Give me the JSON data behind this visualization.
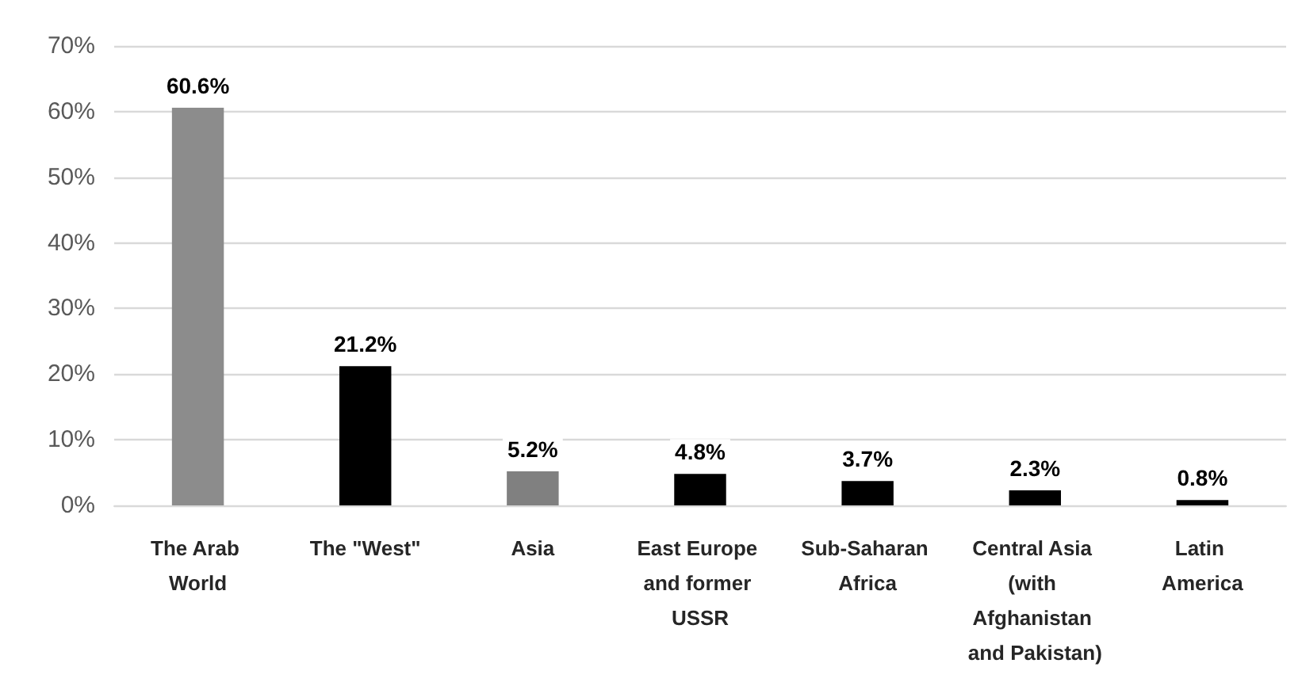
{
  "chart_data": {
    "type": "bar",
    "categories": [
      "The Arab World",
      "The \"West\"",
      "Asia",
      "East Europe and former USSR",
      "Sub-Saharan Africa",
      "Central Asia (with Afghanistan and Pakistan)",
      "Latin America"
    ],
    "values": [
      60.6,
      21.2,
      5.2,
      4.8,
      3.7,
      2.3,
      0.8
    ],
    "colors": [
      "#8c8c8c",
      "#000000",
      "#808080",
      "#000000",
      "#000000",
      "#000000",
      "#000000"
    ],
    "value_labels": [
      "60.6%",
      "21.2%",
      "5.2%",
      "4.8%",
      "3.7%",
      "2.3%",
      "0.8%"
    ],
    "ylim": [
      0,
      70
    ],
    "yticks": [
      {
        "value": 0,
        "label": "0%"
      },
      {
        "value": 10,
        "label": "10%"
      },
      {
        "value": 20,
        "label": "20%"
      },
      {
        "value": 30,
        "label": "30%"
      },
      {
        "value": 40,
        "label": "40%"
      },
      {
        "value": 50,
        "label": "50%"
      },
      {
        "value": 60,
        "label": "60%"
      },
      {
        "value": 70,
        "label": "70%"
      }
    ],
    "grid": "y"
  }
}
